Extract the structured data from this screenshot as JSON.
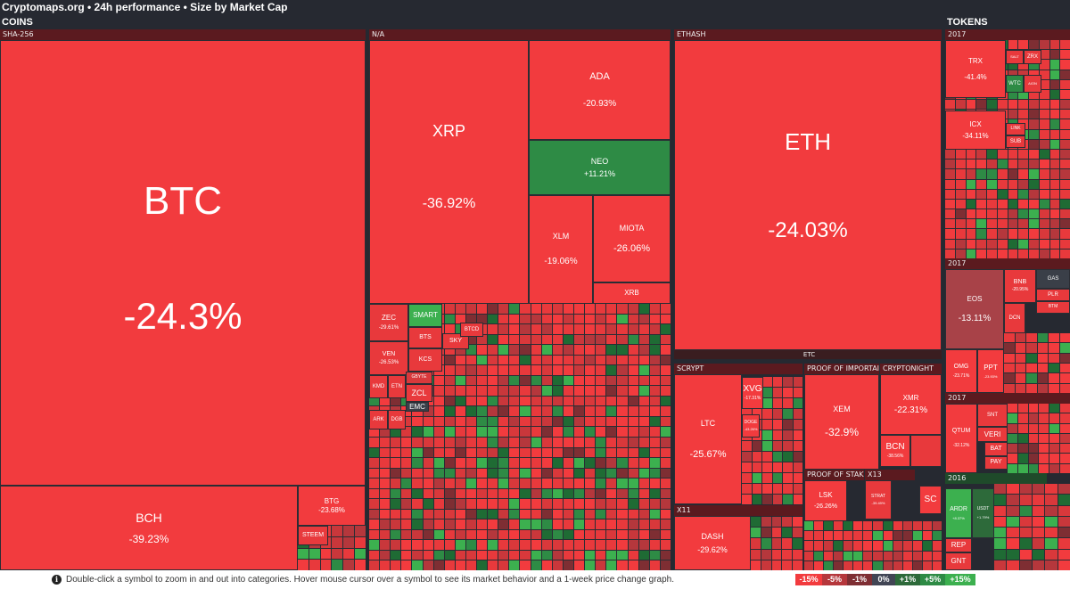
{
  "header": {
    "title": "Cryptomaps.org • 24h performance • Size by Market Cap"
  },
  "sections": {
    "coins": "COINS",
    "tokens": "TOKENS"
  },
  "categories": {
    "sha256": "SHA-256",
    "na": "N/A",
    "ethash": "ETHASH",
    "scrypt": "SCRYPT",
    "poi": "PROOF OF IMPORTAI",
    "cryptonight": "CRYPTONIGHT",
    "pos": "PROOF OF STAKI",
    "x13": "X13",
    "x11": "X11",
    "etc": "ETC",
    "t2017a": "2017",
    "t2017b": "2017",
    "t2017c": "2017",
    "t2016": "2016"
  },
  "coins": [
    {
      "sym": "BTC",
      "pct": "-24.3%",
      "color": "#f23b3e"
    },
    {
      "sym": "BCH",
      "pct": "-39.23%",
      "color": "#f23b3e"
    },
    {
      "sym": "BTG",
      "pct": "-23.68%",
      "color": "#f23b3e"
    },
    {
      "sym": "STEEM",
      "pct": "",
      "color": "#e83a3d"
    },
    {
      "sym": "XRP",
      "pct": "-36.92%",
      "color": "#f23b3e"
    },
    {
      "sym": "ADA",
      "pct": "-20.93%",
      "color": "#f23b3e"
    },
    {
      "sym": "NEO",
      "pct": "+11.21%",
      "color": "#2e8b45"
    },
    {
      "sym": "XLM",
      "pct": "-19.06%",
      "color": "#f23b3e"
    },
    {
      "sym": "MIOTA",
      "pct": "-26.06%",
      "color": "#f23b3e"
    },
    {
      "sym": "XRB",
      "pct": "",
      "color": "#f23b3e"
    },
    {
      "sym": "ETH",
      "pct": "-24.03%",
      "color": "#f23b3e"
    },
    {
      "sym": "ZEC",
      "pct": "-29.61%",
      "color": "#e8393c"
    },
    {
      "sym": "SMART",
      "pct": "",
      "color": "#3cb04f"
    },
    {
      "sym": "BTS",
      "pct": "",
      "color": "#e8393c"
    },
    {
      "sym": "SKY",
      "pct": "",
      "color": "#e8393c"
    },
    {
      "sym": "BTCD",
      "pct": "",
      "color": "#e8393c"
    },
    {
      "sym": "VEN",
      "pct": "-26.53%",
      "color": "#e8393c"
    },
    {
      "sym": "KCS",
      "pct": "",
      "color": "#e8393c"
    },
    {
      "sym": "KMD",
      "pct": "",
      "color": "#e8393c"
    },
    {
      "sym": "ETN",
      "pct": "",
      "color": "#e8393c"
    },
    {
      "sym": "GBYTE",
      "pct": "",
      "color": "#d8393c"
    },
    {
      "sym": "ZCL",
      "pct": "",
      "color": "#e8393c"
    },
    {
      "sym": "EMC",
      "pct": "",
      "color": "#3a3f48"
    },
    {
      "sym": "ARK",
      "pct": "",
      "color": "#e8393c"
    },
    {
      "sym": "DGB",
      "pct": "",
      "color": "#e8393c"
    },
    {
      "sym": "LTC",
      "pct": "-25.67%",
      "color": "#f23b3e"
    },
    {
      "sym": "XVG",
      "pct": "-17.31%",
      "color": "#f23b3e"
    },
    {
      "sym": "DOGE",
      "pct": "-43.26%",
      "color": "#f23b3e"
    },
    {
      "sym": "XEM",
      "pct": "-32.9%",
      "color": "#f23b3e"
    },
    {
      "sym": "XMR",
      "pct": "-22.31%",
      "color": "#f23b3e"
    },
    {
      "sym": "BCN",
      "pct": "-38.56%",
      "color": "#f23b3e"
    },
    {
      "sym": "LSK",
      "pct": "-26.26%",
      "color": "#f23b3e"
    },
    {
      "sym": "STRAT",
      "pct": "-39.49%",
      "color": "#e8393c"
    },
    {
      "sym": "SC",
      "pct": "",
      "color": "#f23b3e"
    },
    {
      "sym": "DASH",
      "pct": "-29.62%",
      "color": "#f23b3e"
    }
  ],
  "tokens": [
    {
      "sym": "TRX",
      "pct": "-41.4%",
      "color": "#f23b3e"
    },
    {
      "sym": "SALT",
      "pct": "",
      "color": "#e8393c"
    },
    {
      "sym": "ZRX",
      "pct": "",
      "color": "#e8393c"
    },
    {
      "sym": "WTC",
      "pct": "",
      "color": "#2e8b45"
    },
    {
      "sym": "AION",
      "pct": "",
      "color": "#e8393c"
    },
    {
      "sym": "ICX",
      "pct": "-34.11%",
      "color": "#f23b3e"
    },
    {
      "sym": "LINK",
      "pct": "",
      "color": "#e8393c"
    },
    {
      "sym": "SUB",
      "pct": "",
      "color": "#e8393c"
    },
    {
      "sym": "EOS",
      "pct": "-13.11%",
      "color": "#a84248"
    },
    {
      "sym": "BNB",
      "pct": "-20.95%",
      "color": "#e8393c"
    },
    {
      "sym": "GAS",
      "pct": "",
      "color": "#3a3f48"
    },
    {
      "sym": "PLR",
      "pct": "",
      "color": "#e8393c"
    },
    {
      "sym": "DCN",
      "pct": "",
      "color": "#e8393c"
    },
    {
      "sym": "BTM",
      "pct": "",
      "color": "#e8393c"
    },
    {
      "sym": "OMG",
      "pct": "-23.71%",
      "color": "#f23b3e"
    },
    {
      "sym": "PPT",
      "pct": "-23.93%",
      "color": "#f23b3e"
    },
    {
      "sym": "QTUM",
      "pct": "-32.12%",
      "color": "#f23b3e"
    },
    {
      "sym": "SNT",
      "pct": "",
      "color": "#e8393c"
    },
    {
      "sym": "VERI",
      "pct": "",
      "color": "#e8393c"
    },
    {
      "sym": "BAT",
      "pct": "",
      "color": "#e8393c"
    },
    {
      "sym": "PAY",
      "pct": "",
      "color": "#e8393c"
    },
    {
      "sym": "ARDR",
      "pct": "+8.37%",
      "color": "#3cb04f"
    },
    {
      "sym": "USDT",
      "pct": "+1.79%",
      "color": "#2d6a3a"
    },
    {
      "sym": "REP",
      "pct": "",
      "color": "#e8393c"
    },
    {
      "sym": "GNT",
      "pct": "",
      "color": "#e8393c"
    }
  ],
  "footer": {
    "info_icon": "info-icon",
    "hint": "Double-click a symbol to zoom in and out into categories. Hover mouse cursor over a symbol to see its market behavior and a 1-week price change graph.",
    "legend": [
      {
        "label": "-15%",
        "color": "#f23b3e"
      },
      {
        "label": "-5%",
        "color": "#b5373c"
      },
      {
        "label": "-1%",
        "color": "#7e2e33"
      },
      {
        "label": "0%",
        "color": "#414554"
      },
      {
        "label": "+1%",
        "color": "#2d6a3a"
      },
      {
        "label": "+5%",
        "color": "#2e8b45"
      },
      {
        "label": "+15%",
        "color": "#3cb04f"
      }
    ]
  }
}
